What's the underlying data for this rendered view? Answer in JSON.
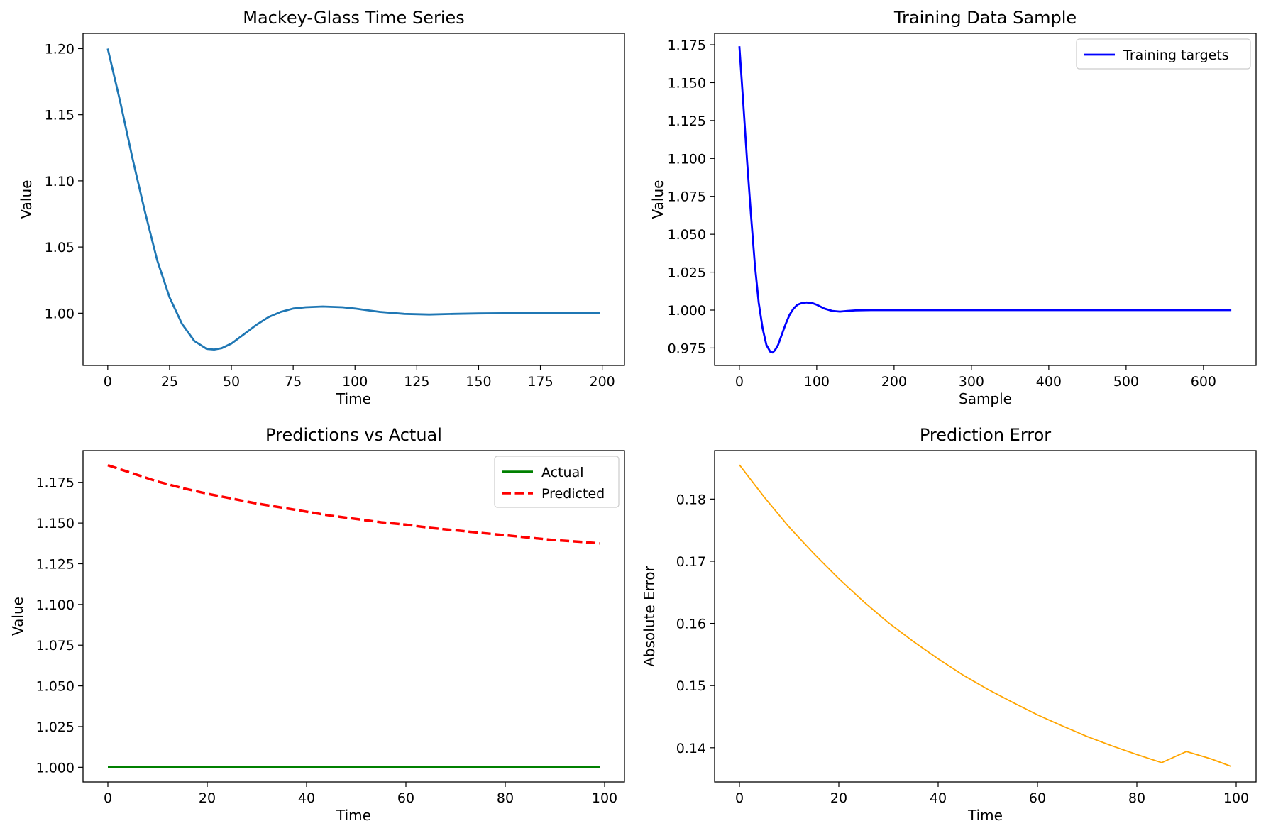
{
  "chart_data": [
    {
      "type": "line",
      "title": "Mackey-Glass Time Series",
      "xlabel": "Time",
      "ylabel": "Value",
      "xlim": [
        -10,
        209
      ],
      "ylim": [
        0.9605,
        1.2115
      ],
      "xticks": [
        0,
        25,
        50,
        75,
        100,
        125,
        150,
        175,
        200
      ],
      "yticks": [
        1.0,
        1.05,
        1.1,
        1.15,
        1.2
      ],
      "ytick_labels": [
        "1.00",
        "1.05",
        "1.10",
        "1.15",
        "1.20"
      ],
      "grid": false,
      "legend": null,
      "series": [
        {
          "color": "#1f77b4",
          "x": [
            0,
            5,
            10,
            15,
            20,
            25,
            30,
            35,
            40,
            43,
            46,
            50,
            55,
            60,
            65,
            70,
            75,
            80,
            87,
            95,
            100,
            110,
            120,
            130,
            140,
            150,
            160,
            170,
            180,
            190,
            199
          ],
          "y": [
            1.2,
            1.16,
            1.117,
            1.077,
            1.04,
            1.012,
            0.992,
            0.979,
            0.973,
            0.9725,
            0.9735,
            0.977,
            0.984,
            0.991,
            0.997,
            1.001,
            1.0035,
            1.0045,
            1.005,
            1.0045,
            1.0035,
            1.001,
            0.9995,
            0.999,
            0.9995,
            0.9998,
            1.0,
            1.0,
            1.0,
            1.0,
            1.0
          ]
        }
      ]
    },
    {
      "type": "line",
      "title": "Training Data Sample",
      "xlabel": "Sample",
      "ylabel": "Value",
      "xlim": [
        -32,
        668
      ],
      "ylim": [
        0.9635,
        1.1825
      ],
      "xticks": [
        0,
        100,
        200,
        300,
        400,
        500,
        600
      ],
      "yticks": [
        0.975,
        1.0,
        1.025,
        1.05,
        1.075,
        1.1,
        1.125,
        1.15,
        1.175
      ],
      "ytick_labels": [
        "0.975",
        "1.000",
        "1.025",
        "1.050",
        "1.075",
        "1.100",
        "1.125",
        "1.150",
        "1.175"
      ],
      "grid": false,
      "legend": "top-right",
      "series": [
        {
          "name": "Training targets",
          "color": "#0000ff",
          "x": [
            0,
            5,
            10,
            15,
            20,
            25,
            30,
            35,
            40,
            43,
            46,
            50,
            55,
            60,
            65,
            70,
            75,
            80,
            87,
            95,
            100,
            110,
            120,
            130,
            140,
            150,
            170,
            200,
            250,
            300,
            400,
            500,
            636
          ],
          "y": [
            1.174,
            1.137,
            1.098,
            1.063,
            1.03,
            1.005,
            0.988,
            0.977,
            0.9725,
            0.972,
            0.9735,
            0.977,
            0.984,
            0.991,
            0.997,
            1.001,
            1.0035,
            1.0045,
            1.005,
            1.0045,
            1.0035,
            1.001,
            0.9995,
            0.999,
            0.9995,
            0.9998,
            1.0,
            1.0,
            1.0,
            1.0,
            1.0,
            1.0,
            1.0
          ]
        }
      ]
    },
    {
      "type": "line",
      "title": "Predictions vs Actual",
      "xlabel": "Time",
      "ylabel": "Value",
      "xlim": [
        -5,
        104
      ],
      "ylim": [
        0.991,
        1.1945
      ],
      "xticks": [
        0,
        20,
        40,
        60,
        80,
        100
      ],
      "yticks": [
        1.0,
        1.025,
        1.05,
        1.075,
        1.1,
        1.125,
        1.15,
        1.175
      ],
      "ytick_labels": [
        "1.000",
        "1.025",
        "1.050",
        "1.075",
        "1.100",
        "1.125",
        "1.150",
        "1.175"
      ],
      "grid": false,
      "legend": "top-right",
      "series": [
        {
          "name": "Actual",
          "color": "#008000",
          "dash": "solid",
          "width": 3.5,
          "x": [
            0,
            99
          ],
          "y": [
            1.0,
            1.0
          ]
        },
        {
          "name": "Predicted",
          "color": "#ff0000",
          "dash": "dashed",
          "width": 3.5,
          "x": [
            0,
            5,
            10,
            15,
            20,
            25,
            30,
            35,
            40,
            45,
            50,
            55,
            60,
            65,
            70,
            75,
            80,
            85,
            90,
            95,
            99
          ],
          "y": [
            1.1855,
            1.1805,
            1.1755,
            1.1715,
            1.168,
            1.165,
            1.162,
            1.1595,
            1.157,
            1.1545,
            1.1525,
            1.1505,
            1.149,
            1.147,
            1.1455,
            1.144,
            1.1425,
            1.141,
            1.1395,
            1.1385,
            1.1375
          ]
        }
      ]
    },
    {
      "type": "line",
      "title": "Prediction Error",
      "xlabel": "Time",
      "ylabel": "Absolute Error",
      "xlim": [
        -5,
        104
      ],
      "ylim": [
        0.1345,
        0.1878
      ],
      "xticks": [
        0,
        20,
        40,
        60,
        80,
        100
      ],
      "yticks": [
        0.14,
        0.15,
        0.16,
        0.17,
        0.18
      ],
      "ytick_labels": [
        "0.14",
        "0.15",
        "0.16",
        "0.17",
        "0.18"
      ],
      "grid": false,
      "legend": null,
      "series": [
        {
          "color": "#ffa500",
          "x": [
            0,
            5,
            10,
            15,
            20,
            25,
            30,
            35,
            40,
            45,
            50,
            55,
            60,
            65,
            70,
            75,
            80,
            85,
            90,
            95,
            99
          ],
          "y": [
            0.1855,
            0.1803,
            0.1755,
            0.1712,
            0.1672,
            0.1635,
            0.1601,
            0.1571,
            0.1543,
            0.1517,
            0.1494,
            0.1473,
            0.1453,
            0.1435,
            0.1418,
            0.1403,
            0.1389,
            0.1376,
            0.1394,
            0.1382,
            0.137
          ]
        }
      ]
    }
  ]
}
